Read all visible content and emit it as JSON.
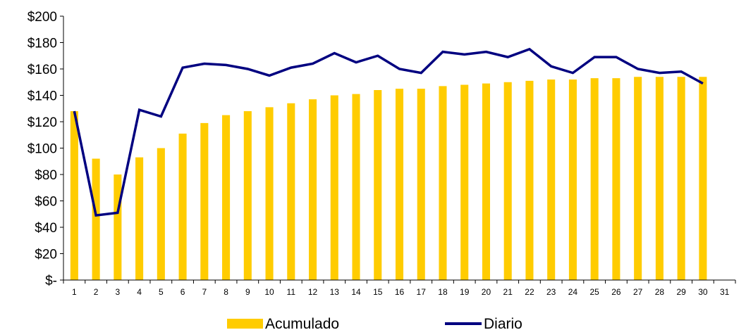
{
  "chart_data": {
    "type": "bar",
    "x": [
      1,
      2,
      3,
      4,
      5,
      6,
      7,
      8,
      9,
      10,
      11,
      12,
      13,
      14,
      15,
      16,
      17,
      18,
      19,
      20,
      21,
      22,
      23,
      24,
      25,
      26,
      27,
      28,
      29,
      30
    ],
    "x_tick_labels": [
      "1",
      "2",
      "3",
      "4",
      "5",
      "6",
      "7",
      "8",
      "9",
      "10",
      "11",
      "12",
      "13",
      "14",
      "15",
      "16",
      "17",
      "18",
      "19",
      "20",
      "21",
      "22",
      "23",
      "24",
      "25",
      "26",
      "27",
      "28",
      "29",
      "30",
      "31"
    ],
    "y_tick_labels": [
      "$-",
      "$20",
      "$40",
      "$60",
      "$80",
      "$100",
      "$120",
      "$140",
      "$160",
      "$180",
      "$200"
    ],
    "ylim": [
      0,
      200
    ],
    "grid": false,
    "legend_position": "bottom",
    "series": [
      {
        "name": "Acumulado",
        "kind": "bar",
        "color": "#FFCC00",
        "values": [
          128,
          92,
          80,
          93,
          100,
          111,
          119,
          125,
          128,
          131,
          134,
          137,
          140,
          141,
          144,
          145,
          145,
          147,
          148,
          149,
          150,
          151,
          152,
          152,
          153,
          153,
          154,
          154,
          154,
          154
        ]
      },
      {
        "name": "Diario",
        "kind": "line",
        "color": "#000080",
        "values": [
          128,
          49,
          51,
          129,
          124,
          161,
          164,
          163,
          160,
          155,
          161,
          164,
          172,
          165,
          170,
          160,
          157,
          173,
          171,
          173,
          169,
          175,
          162,
          157,
          169,
          169,
          160,
          157,
          158,
          149
        ]
      }
    ]
  }
}
